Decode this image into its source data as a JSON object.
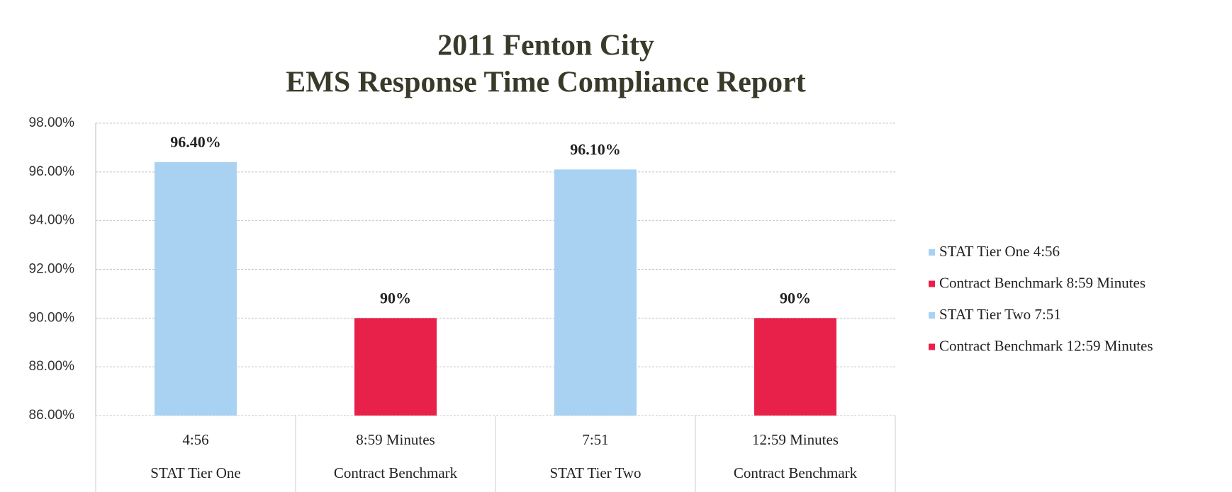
{
  "chart_data": {
    "type": "bar",
    "title": [
      "2011 Fenton City",
      "EMS Response Time Compliance Report"
    ],
    "categories": [
      [
        "4:56",
        "STAT Tier One"
      ],
      [
        "8:59 Minutes",
        "Contract Benchmark"
      ],
      [
        "7:51",
        "STAT Tier Two"
      ],
      [
        "12:59 Minutes",
        "Contract Benchmark"
      ]
    ],
    "values": [
      96.4,
      90,
      96.1,
      90
    ],
    "value_labels": [
      "96.40%",
      "90%",
      "96.10%",
      "90%"
    ],
    "colors": [
      "#a9d1f2",
      "#e8214a",
      "#a9d1f2",
      "#e8214a"
    ],
    "legend": [
      "STAT Tier One 4:56",
      "Contract Benchmark 8:59 Minutes",
      "STAT Tier Two 7:51",
      "Contract Benchmark 12:59 Minutes"
    ],
    "ylim": [
      86,
      98
    ],
    "yticks": [
      {
        "value": 86,
        "label": "86.00%"
      },
      {
        "value": 88,
        "label": "88.00%"
      },
      {
        "value": 90,
        "label": "90.00%"
      },
      {
        "value": 92,
        "label": "92.00%"
      },
      {
        "value": 94,
        "label": "94.00%"
      },
      {
        "value": 96,
        "label": "96.00%"
      },
      {
        "value": 98,
        "label": "98.00%"
      }
    ],
    "grid": true,
    "legend_position": "right"
  }
}
